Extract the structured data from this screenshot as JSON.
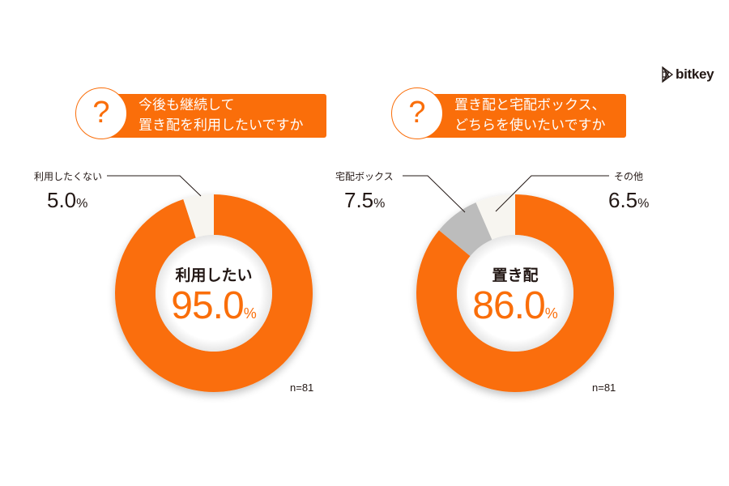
{
  "logo": {
    "text": "bitkey",
    "icon": "bitkey-triangle-logo-icon"
  },
  "colors": {
    "accent": "#fa6e0a",
    "gray": "#bcbcbc",
    "cream": "#f7f5f0",
    "text": "#231815"
  },
  "questions": [
    {
      "icon": "?",
      "line1": "今後も継続して",
      "line2": "置き配を利用したいですか"
    },
    {
      "icon": "?",
      "line1": "置き配と宅配ボックス、",
      "line2": "どちらを使いたいですか"
    }
  ],
  "charts": [
    {
      "center_label": "利用したい",
      "center_value": "95.0",
      "center_unit": "%",
      "callouts": [
        {
          "label": "利用したくない",
          "value": "5.0",
          "unit": "%"
        }
      ],
      "n": "n=81"
    },
    {
      "center_label": "置き配",
      "center_value": "86.0",
      "center_unit": "%",
      "callouts": [
        {
          "label": "宅配ボックス",
          "value": "7.5",
          "unit": "%"
        },
        {
          "label": "その他",
          "value": "6.5",
          "unit": "%"
        }
      ],
      "n": "n=81"
    }
  ],
  "chart_data": [
    {
      "type": "pie",
      "title": "今後も継続して置き配を利用したいですか",
      "categories": [
        "利用したい",
        "利用したくない"
      ],
      "values": [
        95.0,
        5.0
      ],
      "unit": "%",
      "colors": [
        "#fa6e0a",
        "#f7f5f0"
      ],
      "donut": true,
      "sample_size": 81
    },
    {
      "type": "pie",
      "title": "置き配と宅配ボックス、どちらを使いたいですか",
      "categories": [
        "置き配",
        "宅配ボックス",
        "その他"
      ],
      "values": [
        86.0,
        7.5,
        6.5
      ],
      "unit": "%",
      "colors": [
        "#fa6e0a",
        "#bcbcbc",
        "#f7f5f0"
      ],
      "donut": true,
      "sample_size": 81
    }
  ]
}
